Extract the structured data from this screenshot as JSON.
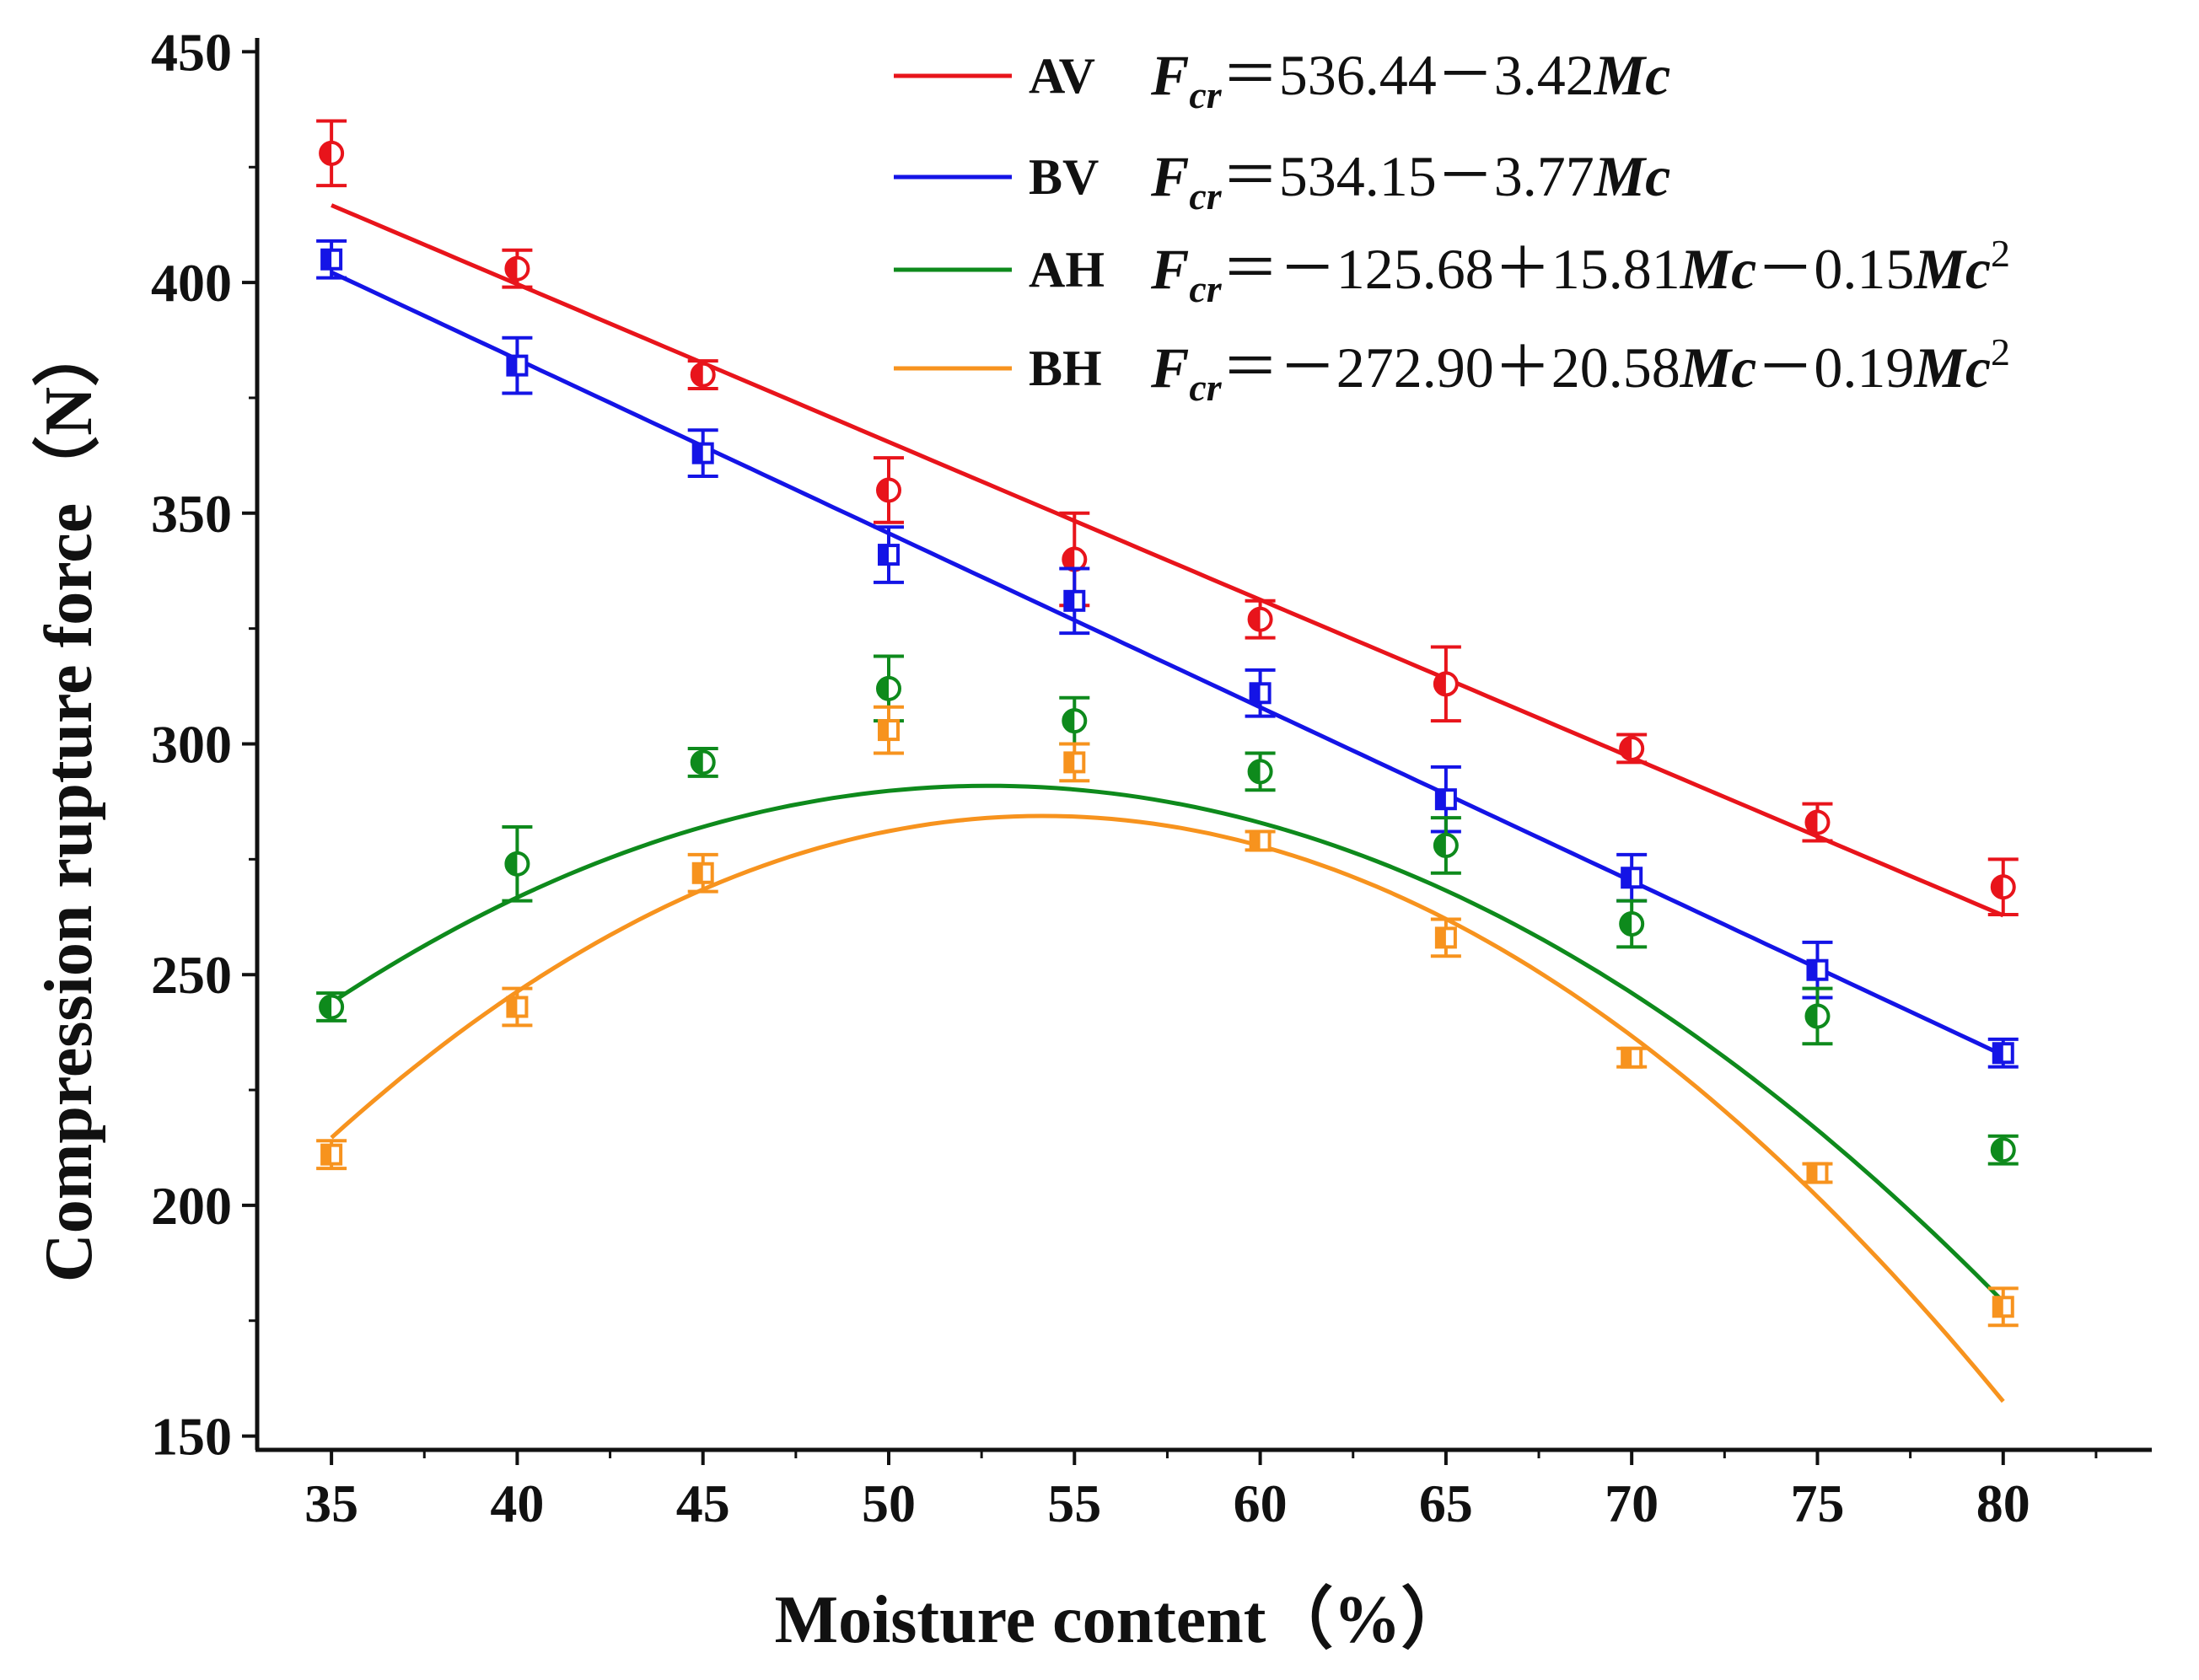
{
  "chart_data": {
    "type": "scatter",
    "title": "",
    "xlabel": "Moisture content（%）",
    "ylabel": "Compression rupture force（N）",
    "xlim": [
      33,
      84
    ],
    "ylim": [
      147,
      453
    ],
    "xticks": [
      35,
      40,
      45,
      50,
      55,
      60,
      65,
      70,
      75,
      80
    ],
    "yticks": [
      150,
      200,
      250,
      300,
      350,
      400,
      450
    ],
    "grid": false,
    "legend_position": "top-right",
    "x": [
      35,
      40,
      45,
      50,
      55,
      60,
      65,
      70,
      75,
      80
    ],
    "series": [
      {
        "name": "AV",
        "color": "#e8141b",
        "fit": "linear",
        "equation": {
          "lhs": "F",
          "sub": "cr",
          "rhs": "＝536.44－3.42",
          "term": "Mc"
        },
        "coef": [
          536.44,
          -3.42,
          0
        ],
        "values": [
          428,
          403,
          380,
          355,
          340,
          327,
          313,
          299,
          283,
          269
        ],
        "errors": [
          7,
          4,
          3,
          7,
          10,
          4,
          8,
          3,
          4,
          6
        ]
      },
      {
        "name": "BV",
        "color": "#1414e6",
        "fit": "linear",
        "equation": {
          "lhs": "F",
          "sub": "cr",
          "rhs": "＝534.15－3.77",
          "term": "Mc"
        },
        "coef": [
          534.15,
          -3.77,
          0
        ],
        "values": [
          405,
          382,
          363,
          341,
          331,
          311,
          288,
          271,
          251,
          233
        ],
        "errors": [
          4,
          6,
          5,
          6,
          7,
          5,
          7,
          5,
          6,
          3
        ]
      },
      {
        "name": "AH",
        "color": "#0e8a1c",
        "fit": "quadratic",
        "equation": {
          "lhs": "F",
          "sub": "cr",
          "rhs1": "＝－125.68＋15.81",
          "term1": "Mc",
          "rhs2": "－0.15",
          "term2": "Mc",
          "sup": "2"
        },
        "coef": [
          -125.68,
          15.81,
          -0.15
        ],
        "values": [
          243,
          274,
          296,
          312,
          305,
          294,
          278,
          261,
          241,
          212
        ],
        "errors": [
          3,
          8,
          3,
          7,
          5,
          4,
          6,
          5,
          6,
          3
        ]
      },
      {
        "name": "BH",
        "color": "#f7931e",
        "fit": "quadratic",
        "equation": {
          "lhs": "F",
          "sub": "cr",
          "rhs1": "＝－272.90＋20.58",
          "term1": "Mc",
          "rhs2": "－0.19",
          "term2": "Mc",
          "sup": "2"
        },
        "coef": [
          -272.9,
          20.58,
          -0.19
        ],
        "values": [
          211,
          243,
          272,
          303,
          296,
          279,
          258,
          232,
          207,
          178
        ],
        "errors": [
          3,
          4,
          4,
          5,
          4,
          2,
          4,
          2,
          2,
          4
        ]
      }
    ]
  }
}
